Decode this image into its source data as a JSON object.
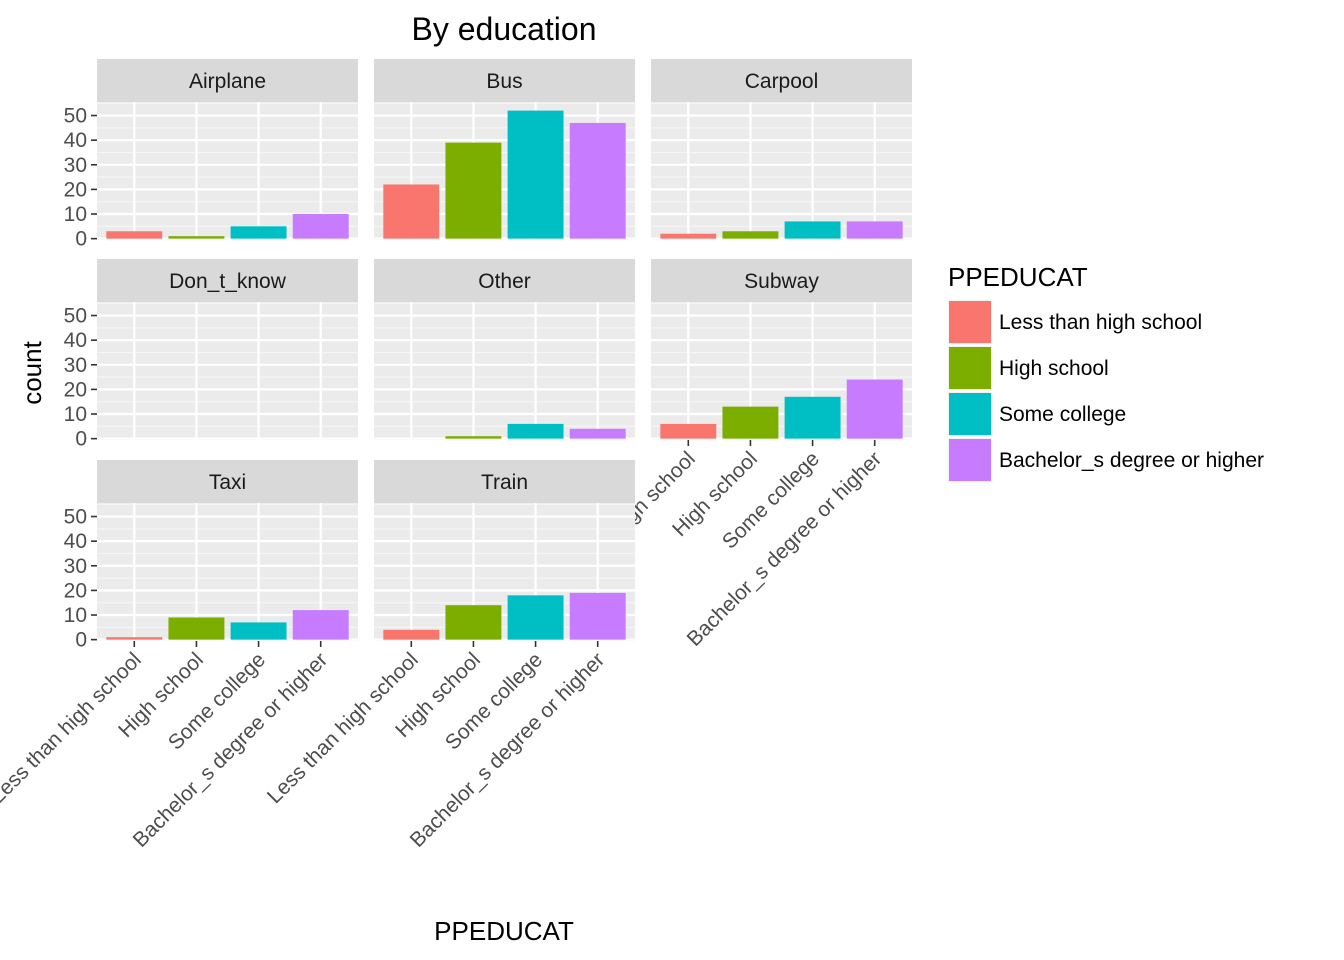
{
  "chart_data": {
    "type": "bar",
    "title": "By education",
    "xlabel": "PPEDUCAT",
    "ylabel": "count",
    "ylim": [
      0,
      55
    ],
    "yticks": [
      0,
      10,
      20,
      30,
      40,
      50
    ],
    "categories": [
      "Less than high school",
      "High school",
      "Some college",
      "Bachelor_s degree or higher"
    ],
    "colors": [
      "#F8766D",
      "#7CAE00",
      "#00BFC4",
      "#C77CFF"
    ],
    "legend": {
      "title": "PPEDUCAT",
      "position": "right",
      "labels": [
        "Less than high school",
        "High school",
        "Some college",
        "Bachelor_s degree or higher"
      ]
    },
    "grid": true,
    "facets": [
      {
        "name": "Airplane",
        "values": [
          3,
          1,
          5,
          10
        ]
      },
      {
        "name": "Bus",
        "values": [
          22,
          39,
          52,
          47
        ]
      },
      {
        "name": "Carpool",
        "values": [
          2,
          3,
          7,
          7
        ]
      },
      {
        "name": "Don_t_know",
        "values": [
          0,
          0,
          0,
          0
        ]
      },
      {
        "name": "Other",
        "values": [
          0,
          1,
          6,
          4
        ]
      },
      {
        "name": "Subway",
        "values": [
          6,
          13,
          17,
          24
        ]
      },
      {
        "name": "Taxi",
        "values": [
          1,
          9,
          7,
          12
        ]
      },
      {
        "name": "Train",
        "values": [
          4,
          14,
          18,
          19
        ]
      }
    ]
  }
}
